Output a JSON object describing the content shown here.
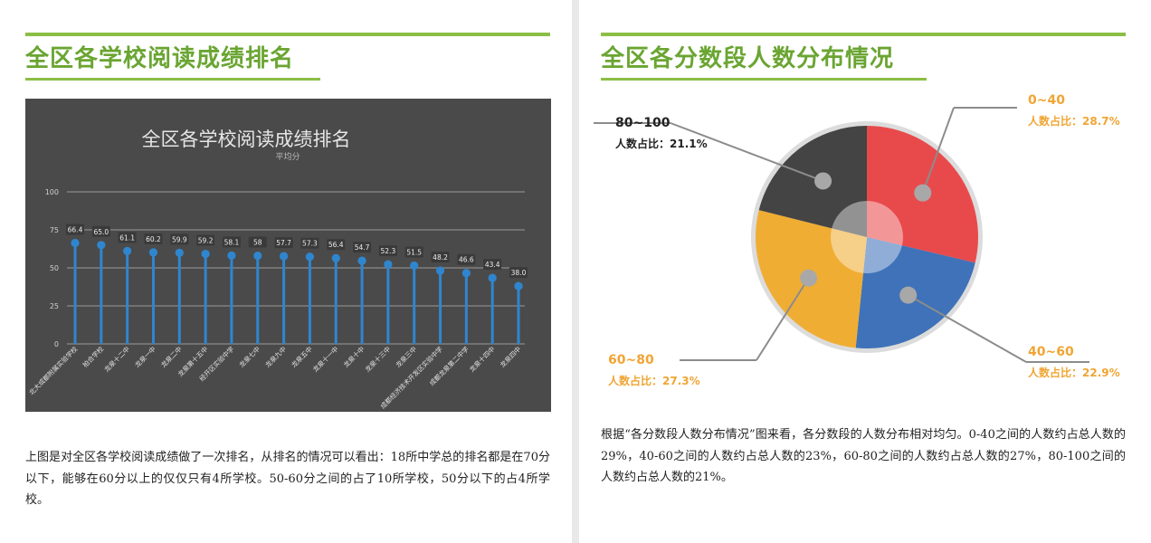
{
  "left": {
    "section_title": "全区各学校阅读成绩排名",
    "paragraph": "上图是对全区各学校阅读成绩做了一次排名，从排名的情况可以看出：18所中学总的排名都是在70分以下，能够在60分以上的仅仅只有4所学校。50-60分之间的占了10所学校，50分以下的占4所学校。"
  },
  "right": {
    "section_title": "全区各分数段人数分布情况",
    "paragraph": "根据“各分数段人数分布情况”图来看，各分数段的人数分布相对均匀。0-40之间的人数约占总人数的29%，40-60之间的人数约占总人数的23%，60-80之间的人数约占总人数的27%，80-100之间的人数约占总人数的21%。"
  },
  "chart_data": [
    {
      "type": "lollipop",
      "title": "全区各学校阅读成绩排名",
      "subtitle": "平均分",
      "ylim": [
        0,
        100
      ],
      "yticks": [
        "0",
        "25",
        "50",
        "75",
        "100"
      ],
      "grid": true,
      "categories": [
        "北大成都附属实验学校",
        "柏合学校",
        "龙泉十二中",
        "龙泉一中",
        "龙泉二中",
        "龙泉第十五中",
        "经开区实验中学",
        "龙泉七中",
        "龙泉九中",
        "龙泉五中",
        "龙泉十一中",
        "龙泉十中",
        "龙泉十三中",
        "龙泉三中",
        "成都经济技术开发区实验中学",
        "成都龙泉第二中学",
        "龙泉十四中",
        "龙泉四中"
      ],
      "values": [
        66.4,
        65.0,
        61.1,
        60.2,
        59.9,
        59.2,
        58.1,
        58,
        57.7,
        57.3,
        56.4,
        54.7,
        52.3,
        51.5,
        48.2,
        46.6,
        43.4,
        38.0
      ],
      "value_labels": [
        "66.4",
        "65.0",
        "61.1",
        "60.2",
        "59.9",
        "59.2",
        "58.1",
        "58",
        "57.7",
        "57.3",
        "56.4",
        "54.7",
        "52.3",
        "51.5",
        "48.2",
        "46.6",
        "43.4",
        "38.0"
      ],
      "colors": {
        "background": "#4a4a4a",
        "mark": "#2f86cf",
        "label_bg": "#3a3a3a"
      }
    },
    {
      "type": "pie",
      "slices": [
        {
          "name": "0~40",
          "label": "人数占比：28.7%",
          "value": 28.7,
          "color": "#e84a4c",
          "label_color": "#f0a534"
        },
        {
          "name": "40~60",
          "label": "人数占比：22.9%",
          "value": 22.9,
          "color": "#3f72b8",
          "label_color": "#f0a534"
        },
        {
          "name": "60~80",
          "label": "人数占比：27.3%",
          "value": 27.3,
          "color": "#f0ad33",
          "label_color": "#f0a534"
        },
        {
          "name": "80~100",
          "label": "人数占比：21.1%",
          "value": 21.1,
          "color": "#444444",
          "label_color": "#222222"
        }
      ]
    }
  ]
}
